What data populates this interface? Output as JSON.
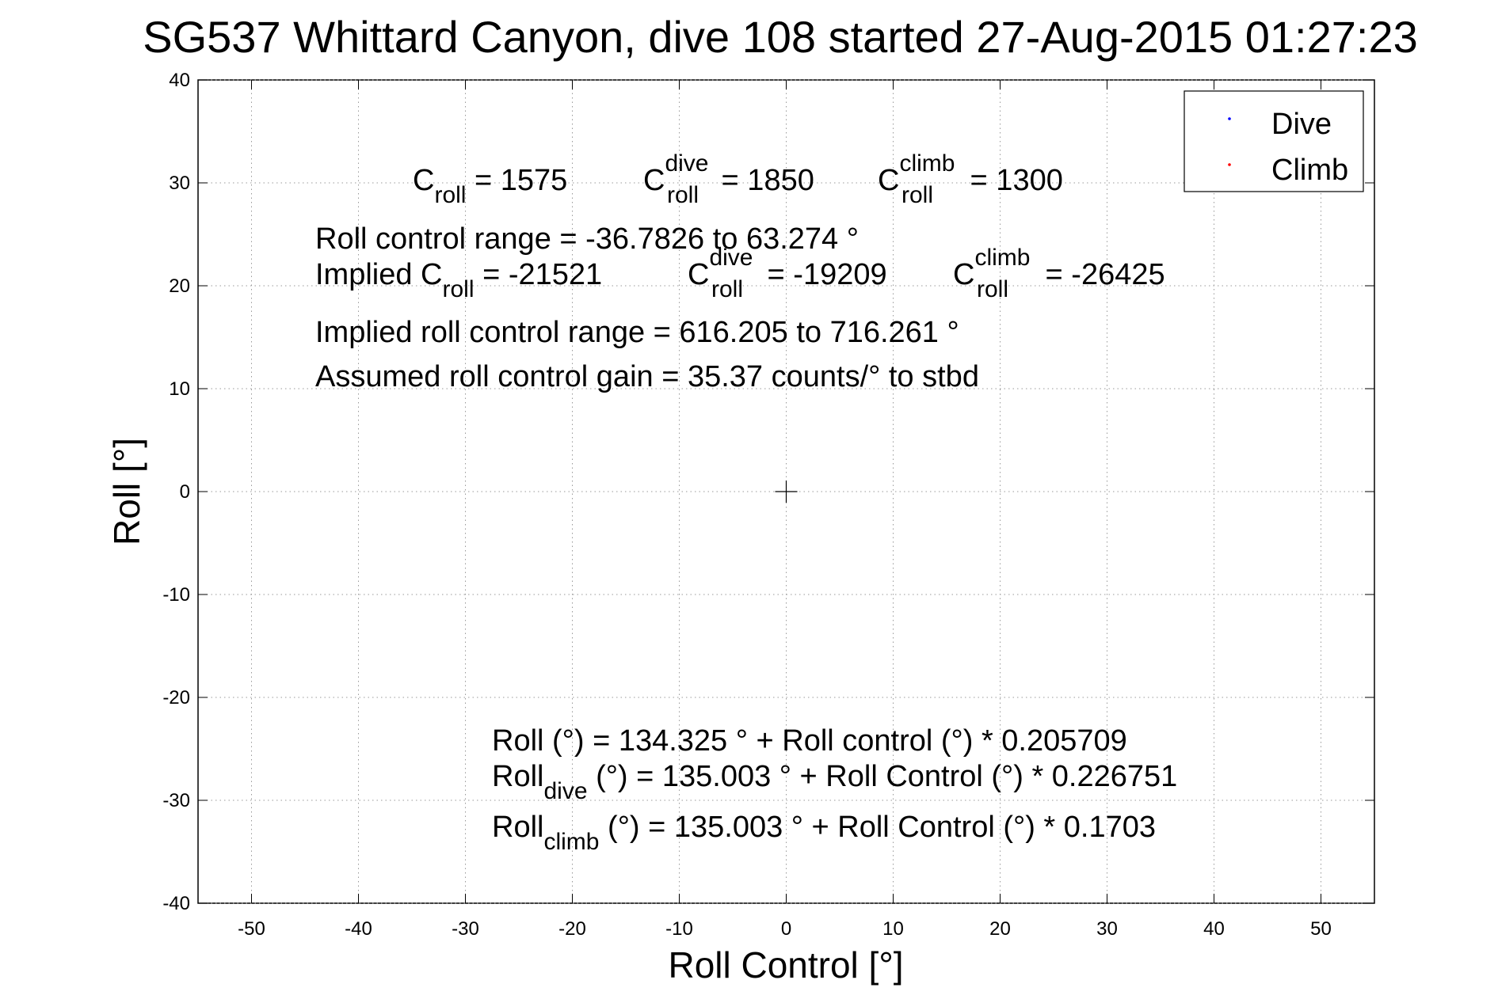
{
  "chart_data": {
    "type": "scatter",
    "title": "SG537 Whittard Canyon, dive 108 started 27-Aug-2015 01:27:23",
    "xlabel": "Roll Control [°]",
    "ylabel": "Roll [°]",
    "xlim": [
      -55,
      55
    ],
    "ylim": [
      -40,
      40
    ],
    "xticks": [
      -50,
      -40,
      -30,
      -20,
      -10,
      0,
      10,
      20,
      30,
      40,
      50
    ],
    "yticks": [
      40,
      30,
      20,
      10,
      0,
      -10,
      -20,
      -30,
      -40
    ],
    "grid": true,
    "legend_position": "top-right",
    "series": [
      {
        "name": "Dive",
        "color": "#0000ff",
        "points": []
      },
      {
        "name": "Climb",
        "color": "#ff0000",
        "points": []
      }
    ],
    "center_marker": {
      "x": 0,
      "y": 0,
      "symbol": "+"
    }
  },
  "annotations": {
    "line1": {
      "a_base": "C",
      "a_sub": "roll",
      "a_val": " = 1575",
      "b_base": "C",
      "b_sup": "dive",
      "b_sub": "roll",
      "b_val": " = 1850",
      "c_base": "C",
      "c_sup": "climb",
      "c_sub": "roll",
      "c_val": " = 1300"
    },
    "line2": "Roll control range = -36.7826 to 63.274 °",
    "line3": {
      "a_pre": "Implied C",
      "a_sub": "roll",
      "a_val": " = -21521",
      "b_base": "C",
      "b_sup": "dive",
      "b_sub": "roll",
      "b_val": " = -19209",
      "c_base": "C",
      "c_sup": "climb",
      "c_sub": "roll",
      "c_val": " = -26425"
    },
    "line4": "Implied roll control range = 616.205 to 716.261 °",
    "line5": "Assumed roll control gain = 35.37 counts/° to stbd",
    "eq1": "Roll (°) = 134.325 ° + Roll control (°) * 0.205709",
    "eq2": {
      "base": "Roll",
      "sub": "dive",
      "rest": " (°) = 135.003 ° + Roll Control (°) * 0.226751"
    },
    "eq3": {
      "base": "Roll",
      "sub": "climb",
      "rest": " (°) = 135.003 ° + Roll Control (°) * 0.1703"
    }
  }
}
